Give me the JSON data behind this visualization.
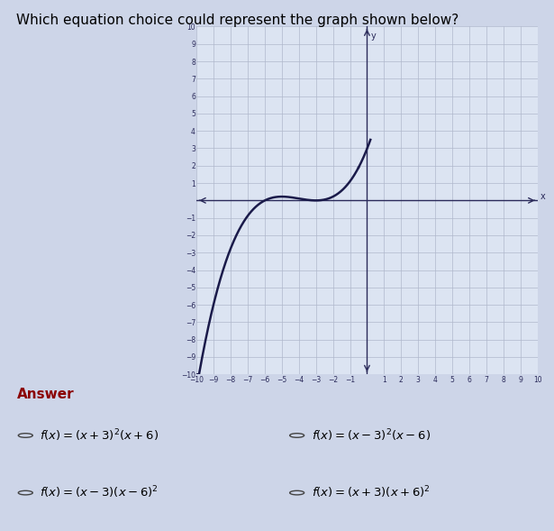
{
  "title": "Which equation choice could represent the graph shown below?",
  "title_fontsize": 11,
  "answer_label": "Answer",
  "xlim": [
    -10,
    10
  ],
  "ylim": [
    -10,
    10
  ],
  "xticks": [
    -10,
    -9,
    -8,
    -7,
    -6,
    -5,
    -4,
    -3,
    -2,
    -1,
    0,
    1,
    2,
    3,
    4,
    5,
    6,
    7,
    8,
    9,
    10
  ],
  "yticks": [
    -10,
    -9,
    -8,
    -7,
    -6,
    -5,
    -4,
    -3,
    -2,
    -1,
    0,
    1,
    2,
    3,
    4,
    5,
    6,
    7,
    8,
    9,
    10
  ],
  "grid_color": "#b0b8cc",
  "axis_color": "#2a2a5a",
  "curve_color": "#1a1a4a",
  "bg_color": "#dce4f2",
  "fig_color": "#cdd5e8",
  "scale_factor": 0.055,
  "x_plot_min": -10.0,
  "x_plot_max": -0.5,
  "choices_left": [
    [
      "f(x) = (x+3)^{2}(x+6)",
      0
    ],
    [
      "f(x) = (x-3)(x-6)^{2}",
      2
    ]
  ],
  "choices_right": [
    [
      "f(x) = (x-3)^{2}(x-6)",
      1
    ],
    [
      "f(x) = (x+3)(x+6)^{2}",
      3
    ]
  ]
}
